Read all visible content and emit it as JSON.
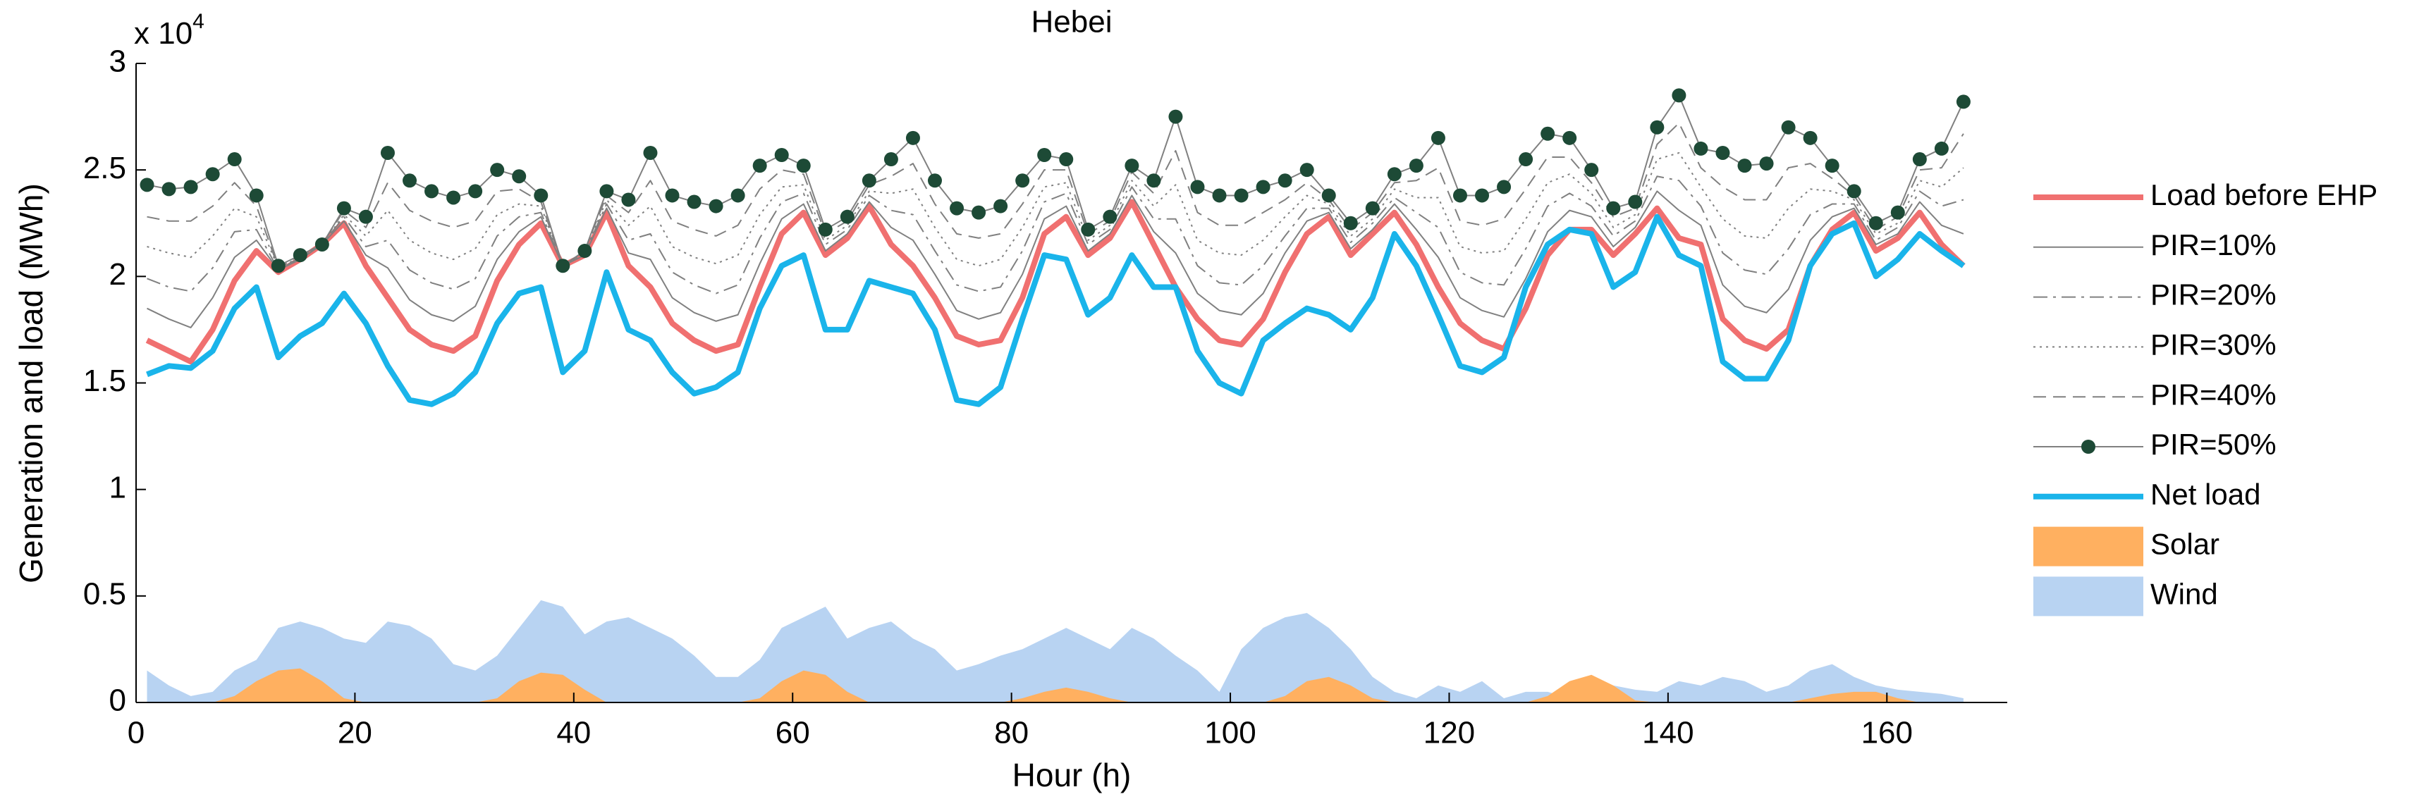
{
  "chart_data": {
    "type": "line",
    "title": "Hebei",
    "x_label": "Hour (h)",
    "y_label": "Generation and load (MWh)",
    "y_multiplier": {
      "base": "x 10",
      "exponent": "4"
    },
    "xlim": [
      0,
      171
    ],
    "xticks": [
      0,
      20,
      40,
      60,
      80,
      100,
      120,
      140,
      160
    ],
    "ylim": [
      0,
      3
    ],
    "yticks": [
      0,
      0.5,
      1,
      1.5,
      2,
      2.5,
      3
    ],
    "legend": "right",
    "x": [
      1,
      3,
      5,
      7,
      9,
      11,
      13,
      15,
      17,
      19,
      21,
      23,
      25,
      27,
      29,
      31,
      33,
      35,
      37,
      39,
      41,
      43,
      45,
      47,
      49,
      51,
      53,
      55,
      57,
      59,
      61,
      63,
      65,
      67,
      69,
      71,
      73,
      75,
      77,
      79,
      81,
      83,
      85,
      87,
      89,
      91,
      93,
      95,
      97,
      99,
      101,
      103,
      105,
      107,
      109,
      111,
      113,
      115,
      117,
      119,
      121,
      123,
      125,
      127,
      129,
      131,
      133,
      135,
      137,
      139,
      141,
      143,
      145,
      147,
      149,
      151,
      153,
      155,
      157,
      159,
      161,
      163,
      165,
      167
    ],
    "series": [
      {
        "name": "Load before EHP",
        "color": "#f07070",
        "style": "line",
        "width": 8,
        "dash": "solid",
        "values": [
          1.7,
          1.65,
          1.6,
          1.75,
          1.98,
          2.12,
          2.02,
          2.08,
          2.15,
          2.25,
          2.05,
          1.9,
          1.75,
          1.68,
          1.65,
          1.72,
          1.98,
          2.15,
          2.25,
          2.05,
          2.1,
          2.3,
          2.05,
          1.95,
          1.78,
          1.7,
          1.65,
          1.68,
          1.95,
          2.2,
          2.3,
          2.1,
          2.18,
          2.33,
          2.15,
          2.05,
          1.9,
          1.72,
          1.68,
          1.7,
          1.9,
          2.2,
          2.28,
          2.1,
          2.18,
          2.35,
          2.15,
          1.95,
          1.8,
          1.7,
          1.68,
          1.8,
          2.02,
          2.2,
          2.28,
          2.1,
          2.2,
          2.3,
          2.15,
          1.95,
          1.78,
          1.7,
          1.66,
          1.85,
          2.1,
          2.22,
          2.22,
          2.1,
          2.2,
          2.32,
          2.18,
          2.15,
          1.8,
          1.7,
          1.66,
          1.75,
          2.05,
          2.22,
          2.3,
          2.12,
          2.18,
          2.3,
          2.15,
          2.05
        ]
      },
      {
        "name": "PIR=10%",
        "color": "#808080",
        "style": "line",
        "width": 2,
        "dash": "solid",
        "values": [
          1.85,
          1.8,
          1.76,
          1.9,
          2.09,
          2.17,
          2.03,
          2.08,
          2.15,
          2.26,
          2.1,
          2.04,
          1.89,
          1.82,
          1.79,
          1.86,
          2.08,
          2.21,
          2.28,
          2.05,
          2.1,
          2.32,
          2.11,
          2.08,
          1.9,
          1.83,
          1.79,
          1.82,
          2.06,
          2.27,
          2.34,
          2.12,
          2.2,
          2.35,
          2.23,
          2.17,
          2.01,
          1.84,
          1.8,
          1.83,
          2.01,
          2.27,
          2.33,
          2.12,
          2.2,
          2.38,
          2.21,
          2.11,
          1.92,
          1.84,
          1.82,
          1.92,
          2.11,
          2.26,
          2.3,
          2.13,
          2.22,
          2.34,
          2.22,
          2.09,
          1.9,
          1.84,
          1.81,
          1.99,
          2.21,
          2.31,
          2.28,
          2.14,
          2.23,
          2.4,
          2.31,
          2.24,
          1.96,
          1.86,
          1.83,
          1.94,
          2.17,
          2.28,
          2.32,
          2.15,
          2.2,
          2.35,
          2.24,
          2.2
        ]
      },
      {
        "name": "PIR=20%",
        "color": "#808080",
        "style": "line",
        "width": 2,
        "dash": "dashdot",
        "values": [
          1.99,
          1.95,
          1.93,
          2.04,
          2.21,
          2.22,
          2.03,
          2.09,
          2.15,
          2.28,
          2.14,
          2.17,
          2.03,
          1.97,
          1.94,
          1.99,
          2.19,
          2.28,
          2.3,
          2.05,
          2.11,
          2.34,
          2.17,
          2.2,
          2.02,
          1.96,
          1.92,
          1.96,
          2.18,
          2.35,
          2.39,
          2.15,
          2.22,
          2.38,
          2.31,
          2.29,
          2.12,
          1.96,
          1.93,
          1.95,
          2.12,
          2.35,
          2.39,
          2.15,
          2.22,
          2.42,
          2.27,
          2.27,
          2.05,
          1.97,
          1.96,
          2.05,
          2.19,
          2.32,
          2.32,
          2.16,
          2.25,
          2.37,
          2.3,
          2.23,
          2.02,
          1.97,
          1.96,
          2.13,
          2.33,
          2.39,
          2.33,
          2.19,
          2.26,
          2.47,
          2.45,
          2.33,
          2.11,
          2.03,
          2.01,
          2.13,
          2.29,
          2.34,
          2.34,
          2.17,
          2.23,
          2.4,
          2.33,
          2.36
        ]
      },
      {
        "name": "PIR=30%",
        "color": "#808080",
        "style": "line",
        "width": 2,
        "dash": "dotted",
        "values": [
          2.14,
          2.11,
          2.09,
          2.19,
          2.32,
          2.28,
          2.04,
          2.09,
          2.15,
          2.29,
          2.19,
          2.31,
          2.17,
          2.11,
          2.08,
          2.13,
          2.29,
          2.34,
          2.33,
          2.05,
          2.11,
          2.36,
          2.24,
          2.33,
          2.14,
          2.09,
          2.06,
          2.1,
          2.29,
          2.42,
          2.43,
          2.17,
          2.24,
          2.4,
          2.39,
          2.41,
          2.23,
          2.08,
          2.05,
          2.08,
          2.23,
          2.42,
          2.44,
          2.17,
          2.24,
          2.45,
          2.33,
          2.43,
          2.17,
          2.11,
          2.1,
          2.17,
          2.28,
          2.38,
          2.34,
          2.19,
          2.27,
          2.41,
          2.37,
          2.37,
          2.14,
          2.11,
          2.12,
          2.27,
          2.44,
          2.48,
          2.39,
          2.23,
          2.29,
          2.55,
          2.58,
          2.42,
          2.27,
          2.19,
          2.18,
          2.32,
          2.41,
          2.4,
          2.36,
          2.2,
          2.25,
          2.45,
          2.42,
          2.51
        ]
      },
      {
        "name": "PIR=40%",
        "color": "#808080",
        "style": "line",
        "width": 2,
        "dash": "dashed",
        "values": [
          2.28,
          2.26,
          2.26,
          2.33,
          2.44,
          2.33,
          2.04,
          2.1,
          2.15,
          2.31,
          2.23,
          2.44,
          2.31,
          2.26,
          2.23,
          2.26,
          2.4,
          2.41,
          2.35,
          2.05,
          2.12,
          2.38,
          2.3,
          2.45,
          2.26,
          2.22,
          2.19,
          2.24,
          2.41,
          2.5,
          2.48,
          2.2,
          2.26,
          2.43,
          2.47,
          2.53,
          2.34,
          2.2,
          2.18,
          2.2,
          2.34,
          2.5,
          2.5,
          2.2,
          2.26,
          2.49,
          2.39,
          2.59,
          2.3,
          2.24,
          2.24,
          2.3,
          2.36,
          2.44,
          2.36,
          2.22,
          2.3,
          2.44,
          2.45,
          2.51,
          2.26,
          2.24,
          2.27,
          2.41,
          2.56,
          2.56,
          2.44,
          2.28,
          2.32,
          2.62,
          2.72,
          2.51,
          2.42,
          2.36,
          2.36,
          2.51,
          2.53,
          2.46,
          2.38,
          2.22,
          2.28,
          2.5,
          2.51,
          2.67
        ]
      },
      {
        "name": "PIR=50%",
        "color": "#808080",
        "marker_color": "#1d4a36",
        "style": "line",
        "width": 2,
        "dash": "solid",
        "marker": "circle",
        "values": [
          2.43,
          2.41,
          2.42,
          2.48,
          2.55,
          2.38,
          2.05,
          2.1,
          2.15,
          2.32,
          2.28,
          2.58,
          2.45,
          2.4,
          2.37,
          2.4,
          2.5,
          2.47,
          2.38,
          2.05,
          2.12,
          2.4,
          2.36,
          2.58,
          2.38,
          2.35,
          2.33,
          2.38,
          2.52,
          2.57,
          2.52,
          2.22,
          2.28,
          2.45,
          2.55,
          2.65,
          2.45,
          2.32,
          2.3,
          2.33,
          2.45,
          2.57,
          2.55,
          2.22,
          2.28,
          2.52,
          2.45,
          2.75,
          2.42,
          2.38,
          2.38,
          2.42,
          2.45,
          2.5,
          2.38,
          2.25,
          2.32,
          2.48,
          2.52,
          2.65,
          2.38,
          2.38,
          2.42,
          2.55,
          2.67,
          2.65,
          2.5,
          2.32,
          2.35,
          2.7,
          2.85,
          2.6,
          2.58,
          2.52,
          2.53,
          2.7,
          2.65,
          2.52,
          2.4,
          2.25,
          2.3,
          2.55,
          2.6,
          2.82
        ]
      },
      {
        "name": "Net load",
        "color": "#1ab4ea",
        "style": "line",
        "width": 8,
        "dash": "solid",
        "values": [
          1.54,
          1.58,
          1.57,
          1.65,
          1.85,
          1.95,
          1.62,
          1.72,
          1.78,
          1.92,
          1.78,
          1.58,
          1.42,
          1.4,
          1.45,
          1.55,
          1.78,
          1.92,
          1.95,
          1.55,
          1.65,
          2.02,
          1.75,
          1.7,
          1.55,
          1.45,
          1.48,
          1.55,
          1.85,
          2.05,
          2.1,
          1.75,
          1.75,
          1.98,
          1.95,
          1.92,
          1.75,
          1.42,
          1.4,
          1.48,
          1.8,
          2.1,
          2.08,
          1.82,
          1.9,
          2.1,
          1.95,
          1.95,
          1.65,
          1.5,
          1.45,
          1.7,
          1.78,
          1.85,
          1.82,
          1.75,
          1.9,
          2.2,
          2.05,
          1.82,
          1.58,
          1.55,
          1.62,
          1.95,
          2.15,
          2.22,
          2.2,
          1.95,
          2.02,
          2.28,
          2.1,
          2.05,
          1.6,
          1.52,
          1.52,
          1.7,
          2.05,
          2.2,
          2.25,
          2.0,
          2.08,
          2.2,
          2.12,
          2.05
        ]
      },
      {
        "name": "Solar",
        "color": "#ffb060",
        "style": "area",
        "values": [
          0,
          0,
          0,
          0,
          0.03,
          0.1,
          0.15,
          0.16,
          0.1,
          0.02,
          0,
          0,
          0,
          0,
          0,
          0,
          0.02,
          0.1,
          0.14,
          0.13,
          0.06,
          0,
          0,
          0,
          0,
          0,
          0,
          0,
          0.02,
          0.1,
          0.15,
          0.13,
          0.05,
          0,
          0,
          0,
          0,
          0,
          0,
          0,
          0.02,
          0.05,
          0.07,
          0.05,
          0.02,
          0,
          0,
          0,
          0,
          0,
          0,
          0,
          0.03,
          0.1,
          0.12,
          0.08,
          0.02,
          0,
          0,
          0,
          0,
          0,
          0,
          0,
          0.03,
          0.1,
          0.13,
          0.08,
          0.01,
          0,
          0,
          0,
          0,
          0,
          0,
          0,
          0.02,
          0.04,
          0.05,
          0.05,
          0.02,
          0,
          0,
          0
        ]
      },
      {
        "name": "Wind",
        "color": "#b8d3f2",
        "style": "area",
        "values": [
          0.15,
          0.08,
          0.03,
          0.05,
          0.15,
          0.2,
          0.35,
          0.38,
          0.35,
          0.3,
          0.28,
          0.38,
          0.36,
          0.3,
          0.18,
          0.15,
          0.22,
          0.35,
          0.48,
          0.45,
          0.32,
          0.38,
          0.4,
          0.35,
          0.3,
          0.22,
          0.12,
          0.12,
          0.2,
          0.35,
          0.4,
          0.45,
          0.3,
          0.35,
          0.38,
          0.3,
          0.25,
          0.15,
          0.18,
          0.22,
          0.25,
          0.3,
          0.35,
          0.3,
          0.25,
          0.35,
          0.3,
          0.22,
          0.15,
          0.05,
          0.25,
          0.35,
          0.4,
          0.42,
          0.35,
          0.25,
          0.12,
          0.05,
          0.02,
          0.08,
          0.05,
          0.1,
          0.02,
          0.05,
          0.05,
          0.02,
          0.05,
          0.08,
          0.06,
          0.05,
          0.1,
          0.08,
          0.12,
          0.1,
          0.05,
          0.08,
          0.15,
          0.18,
          0.12,
          0.08,
          0.06,
          0.05,
          0.04,
          0.02
        ]
      }
    ]
  }
}
